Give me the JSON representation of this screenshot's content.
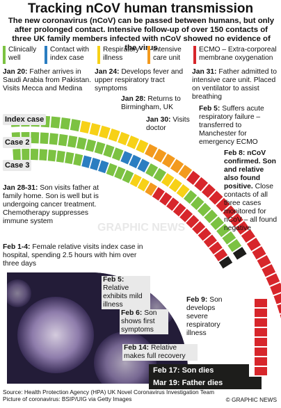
{
  "title": "Tracking nCoV human transmission",
  "subtitle": "The new coronavirus (nCoV) can be passed between humans, but only after prolonged contact. Intensive follow-up of over 150 contacts of three UK family members infected with nCoV showed no evidence of the virus",
  "legend": [
    {
      "label": "Clinically well",
      "color": "#7cc242"
    },
    {
      "label": "Contact with index case",
      "color": "#2b7ec1"
    },
    {
      "label": "Respiratory illness",
      "color": "#f7d117"
    },
    {
      "label": "Intensive care unit",
      "color": "#f39a1e"
    },
    {
      "label": "ECMO – Extra-corporeal membrane oxygenation",
      "color": "#d7262b"
    }
  ],
  "rows": {
    "index": "Index case",
    "case2": "Case 2",
    "case3": "Case 3"
  },
  "events": {
    "jan20": {
      "date": "Jan 20:",
      "text": "Father arrives in Saudi Arabia from Pakistan. Visits Mecca and Medina"
    },
    "jan24": {
      "date": "Jan 24:",
      "text": "Develops fever and upper respiratory tract symptoms"
    },
    "jan28": {
      "date": "Jan 28:",
      "text": "Returns to Birmingham, UK"
    },
    "jan30": {
      "date": "Jan 30:",
      "text": "Visits doctor"
    },
    "jan31": {
      "date": "Jan 31:",
      "text": "Father admitted to intensive care unit. Placed on ventilator to assist breathing"
    },
    "feb5": {
      "date": "Feb 5:",
      "text": "Suffers acute respiratory failure – transferred to Manchester for emergency ECMO"
    },
    "feb8": {
      "date": "Feb 8: nCoV confirmed. Son and relative also found positive.",
      "text": "Close contacts of all three cases monitored for nCoV – all found negative"
    },
    "jan2831": {
      "date": "Jan 28-31:",
      "text": "Son visits father at family home. Son is well but is undergoing cancer treatment. Chemotherapy suppresses immune system"
    },
    "feb14a": {
      "date": "Feb 1-4:",
      "text": "Female relative visits index case in hospital, spending 2.5 hours with him over three days"
    },
    "feb5b": {
      "date": "Feb 5:",
      "text": "Relative exhibits mild illness"
    },
    "feb6": {
      "date": "Feb 6:",
      "text": "Son shows first symptoms"
    },
    "feb9": {
      "date": "Feb 9:",
      "text": "Son develops severe respiratory illness"
    },
    "feb14": {
      "date": "Feb 14:",
      "text": "Relative makes full recovery"
    }
  },
  "deaths": {
    "son": "Feb 17: Son dies",
    "father": "Mar 19: Father dies"
  },
  "watermark": "GRAPHIC NEWS",
  "source": "Source: Health Protection Agency (HPA) UK Novel Coronavirus Investigation Team",
  "picture_credit": "Picture of coronavirus: BSIP/UIG via Getty Images",
  "copyright": "© GRAPHIC NEWS"
}
